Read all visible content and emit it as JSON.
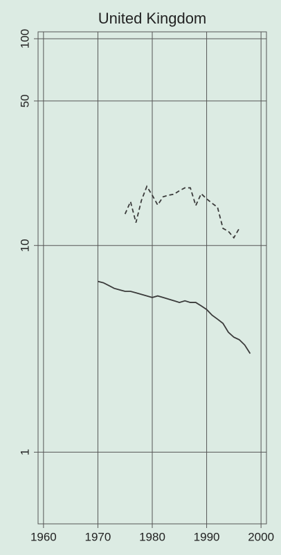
{
  "chart_data": {
    "type": "line",
    "title": "United Kingdom",
    "log_y": true,
    "grid": true,
    "background": "#dcebe3",
    "xlim": [
      1959,
      2001
    ],
    "xticks": [
      1960,
      1970,
      1980,
      1990,
      2000
    ],
    "ylim": [
      0.45,
      108
    ],
    "yticks": [
      1,
      10,
      50,
      100
    ],
    "series": [
      {
        "color": "#3a3a3a",
        "style": "solid",
        "x": [
          1970,
          1971,
          1972,
          1973,
          1974,
          1975,
          1976,
          1977,
          1978,
          1979,
          1980,
          1981,
          1982,
          1983,
          1984,
          1985,
          1986,
          1987,
          1988,
          1989,
          1990,
          1991,
          1992,
          1993,
          1994,
          1995,
          1996,
          1997,
          1998
        ],
        "values": [
          6.7,
          6.6,
          6.4,
          6.2,
          6.1,
          6.0,
          6.0,
          5.9,
          5.8,
          5.7,
          5.6,
          5.7,
          5.6,
          5.5,
          5.4,
          5.3,
          5.4,
          5.3,
          5.3,
          5.1,
          4.9,
          4.6,
          4.4,
          4.2,
          3.8,
          3.6,
          3.5,
          3.3,
          3.0
        ]
      },
      {
        "color": "#3a3a3a",
        "style": "dashed",
        "x": [
          1975,
          1976,
          1977,
          1978,
          1979,
          1980,
          1981,
          1982,
          1983,
          1984,
          1985,
          1986,
          1987,
          1988,
          1989,
          1990,
          1991,
          1992,
          1993,
          1994,
          1995,
          1996
        ],
        "values": [
          14.2,
          16.3,
          12.9,
          16.5,
          19.3,
          17.5,
          15.7,
          17.2,
          17.5,
          17.7,
          18.4,
          19.0,
          19.0,
          15.6,
          17.8,
          16.8,
          16.0,
          15.3,
          12.1,
          11.7,
          10.9,
          12.1
        ]
      }
    ]
  }
}
